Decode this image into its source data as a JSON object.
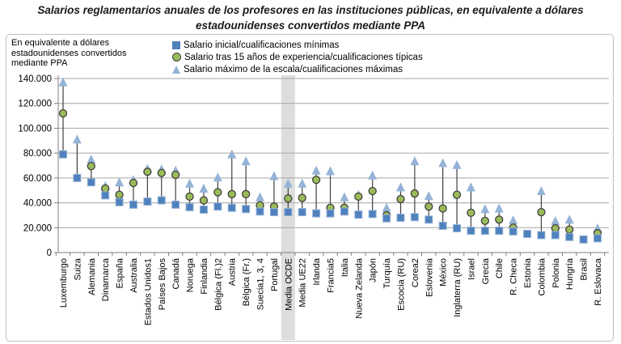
{
  "title": {
    "line1": "Salarios reglamentarios anuales de los profesores en las instituciones públicas, en equivalente a dólares",
    "line2": "estadounidenses convertidos mediante PPA"
  },
  "axis_note_lines": [
    "En equivalente a dólares",
    "estadounidenses convertidos",
    "mediante PPA"
  ],
  "legend": {
    "items": [
      {
        "marker": "square",
        "color": "#4f81bd",
        "label": "Salario inicial/cualificaciones mínimas"
      },
      {
        "marker": "circle",
        "color": "#9bbb59",
        "label": "Salario tras 15 años de experiencia/cualificaciones típicas"
      },
      {
        "marker": "triangle",
        "color": "#95b3d7",
        "label": "Salario máximo de la escala/cualificaciones máximas"
      }
    ]
  },
  "chart_data": {
    "type": "scatter",
    "subtype": "vertical-range-dot-plot",
    "title": "Salarios reglamentarios anuales de los profesores en las instituciones públicas, en equivalente a dólares estadounidenses convertidos mediante PPA",
    "xlabel": "",
    "ylabel": "En equivalente a dólares estadounidenses convertidos mediante PPA",
    "ylim": [
      0,
      140000
    ],
    "ytick_step": 20000,
    "ytick_labels": [
      "0",
      "20.000",
      "40.000",
      "60.000",
      "80.000",
      "100.000",
      "120.000",
      "140.000"
    ],
    "grid": true,
    "legend_position": "top",
    "highlight_category": "Media OCDE",
    "highlight_band_color": "#d9d9d9",
    "colors": {
      "square": "#4f81bd",
      "square_edge": "#95b3d7",
      "circle": "#9bbb59",
      "circle_edge": "#404040",
      "triangle": "#95b3d7",
      "stem": "#404040",
      "gridline": "#a6a6a6",
      "axis": "#808080"
    },
    "categories": [
      "Luxemburgo",
      "Suiza",
      "Alemania",
      "Dinamarca",
      "España",
      "Australia",
      "Estados Unidos1",
      "Países Bajos",
      "Canadá",
      "Noruega",
      "Finlandia",
      "Bélgica (Fl.)2",
      "Austria",
      "Bélgica (Fr.)",
      "Suecia1, 3, 4",
      "Portugal",
      "Media OCDE",
      "Media UE22",
      "Irlanda",
      "Francia5",
      "Italia",
      "Nueva Zelanda",
      "Japón",
      "Turquía",
      "Escocia (RU)",
      "Corea2",
      "Eslovenia",
      "México",
      "Inglaterra (RU)",
      "Israel",
      "Grecia",
      "Chile",
      "R. Checa",
      "Estonia",
      "Colombia",
      "Polonia",
      "Hungría",
      "Brasil",
      "R. Eslovaca"
    ],
    "series": [
      {
        "name": "Salario inicial/cualificaciones mínimas",
        "marker": "square",
        "values": [
          79000,
          60000,
          56500,
          46000,
          40500,
          38500,
          41000,
          42000,
          38500,
          36500,
          34500,
          37000,
          36000,
          35000,
          33000,
          32500,
          32500,
          32500,
          31500,
          31500,
          33000,
          30500,
          31000,
          27500,
          28000,
          28500,
          26500,
          21500,
          19500,
          17500,
          17500,
          17500,
          17000,
          15000,
          14000,
          14000,
          12500,
          10500,
          11500
        ]
      },
      {
        "name": "Salario tras 15 años de experiencia/cualificaciones típicas",
        "marker": "circle",
        "values": [
          112000,
          null,
          69500,
          51500,
          46500,
          56000,
          65000,
          64000,
          62500,
          45000,
          42000,
          48500,
          47000,
          47000,
          38000,
          37000,
          43500,
          44000,
          58500,
          36000,
          36000,
          45000,
          49500,
          30000,
          43000,
          47500,
          37000,
          35500,
          46500,
          32000,
          25500,
          26500,
          20000,
          null,
          32500,
          19500,
          18500,
          null,
          15500
        ]
      },
      {
        "name": "Salario máximo de la escala/cualificaciones máximas",
        "marker": "triangle",
        "values": [
          137000,
          91000,
          75000,
          53500,
          56500,
          58500,
          67500,
          67000,
          66000,
          55500,
          51500,
          60500,
          79000,
          73500,
          44500,
          61500,
          55500,
          55500,
          66000,
          65500,
          44500,
          46500,
          62000,
          36000,
          52500,
          73500,
          45500,
          72000,
          70500,
          52500,
          35000,
          35500,
          26000,
          null,
          49500,
          25500,
          26500,
          null,
          19500
        ]
      }
    ]
  }
}
